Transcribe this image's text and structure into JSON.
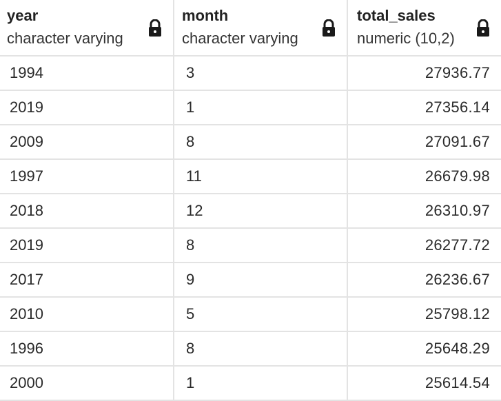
{
  "columns": [
    {
      "name": "year",
      "type": "character varying",
      "icon": "lock-icon"
    },
    {
      "name": "month",
      "type": "character varying",
      "icon": "lock-icon"
    },
    {
      "name": "total_sales",
      "type": "numeric (10,2)",
      "icon": "lock-icon"
    }
  ],
  "rows": [
    {
      "year": "1994",
      "month": "3",
      "total_sales": "27936.77"
    },
    {
      "year": "2019",
      "month": "1",
      "total_sales": "27356.14"
    },
    {
      "year": "2009",
      "month": "8",
      "total_sales": "27091.67"
    },
    {
      "year": "1997",
      "month": "11",
      "total_sales": "26679.98"
    },
    {
      "year": "2018",
      "month": "12",
      "total_sales": "26310.97"
    },
    {
      "year": "2019",
      "month": "8",
      "total_sales": "26277.72"
    },
    {
      "year": "2017",
      "month": "9",
      "total_sales": "26236.67"
    },
    {
      "year": "2010",
      "month": "5",
      "total_sales": "25798.12"
    },
    {
      "year": "1996",
      "month": "8",
      "total_sales": "25648.29"
    },
    {
      "year": "2000",
      "month": "1",
      "total_sales": "25614.54"
    }
  ]
}
